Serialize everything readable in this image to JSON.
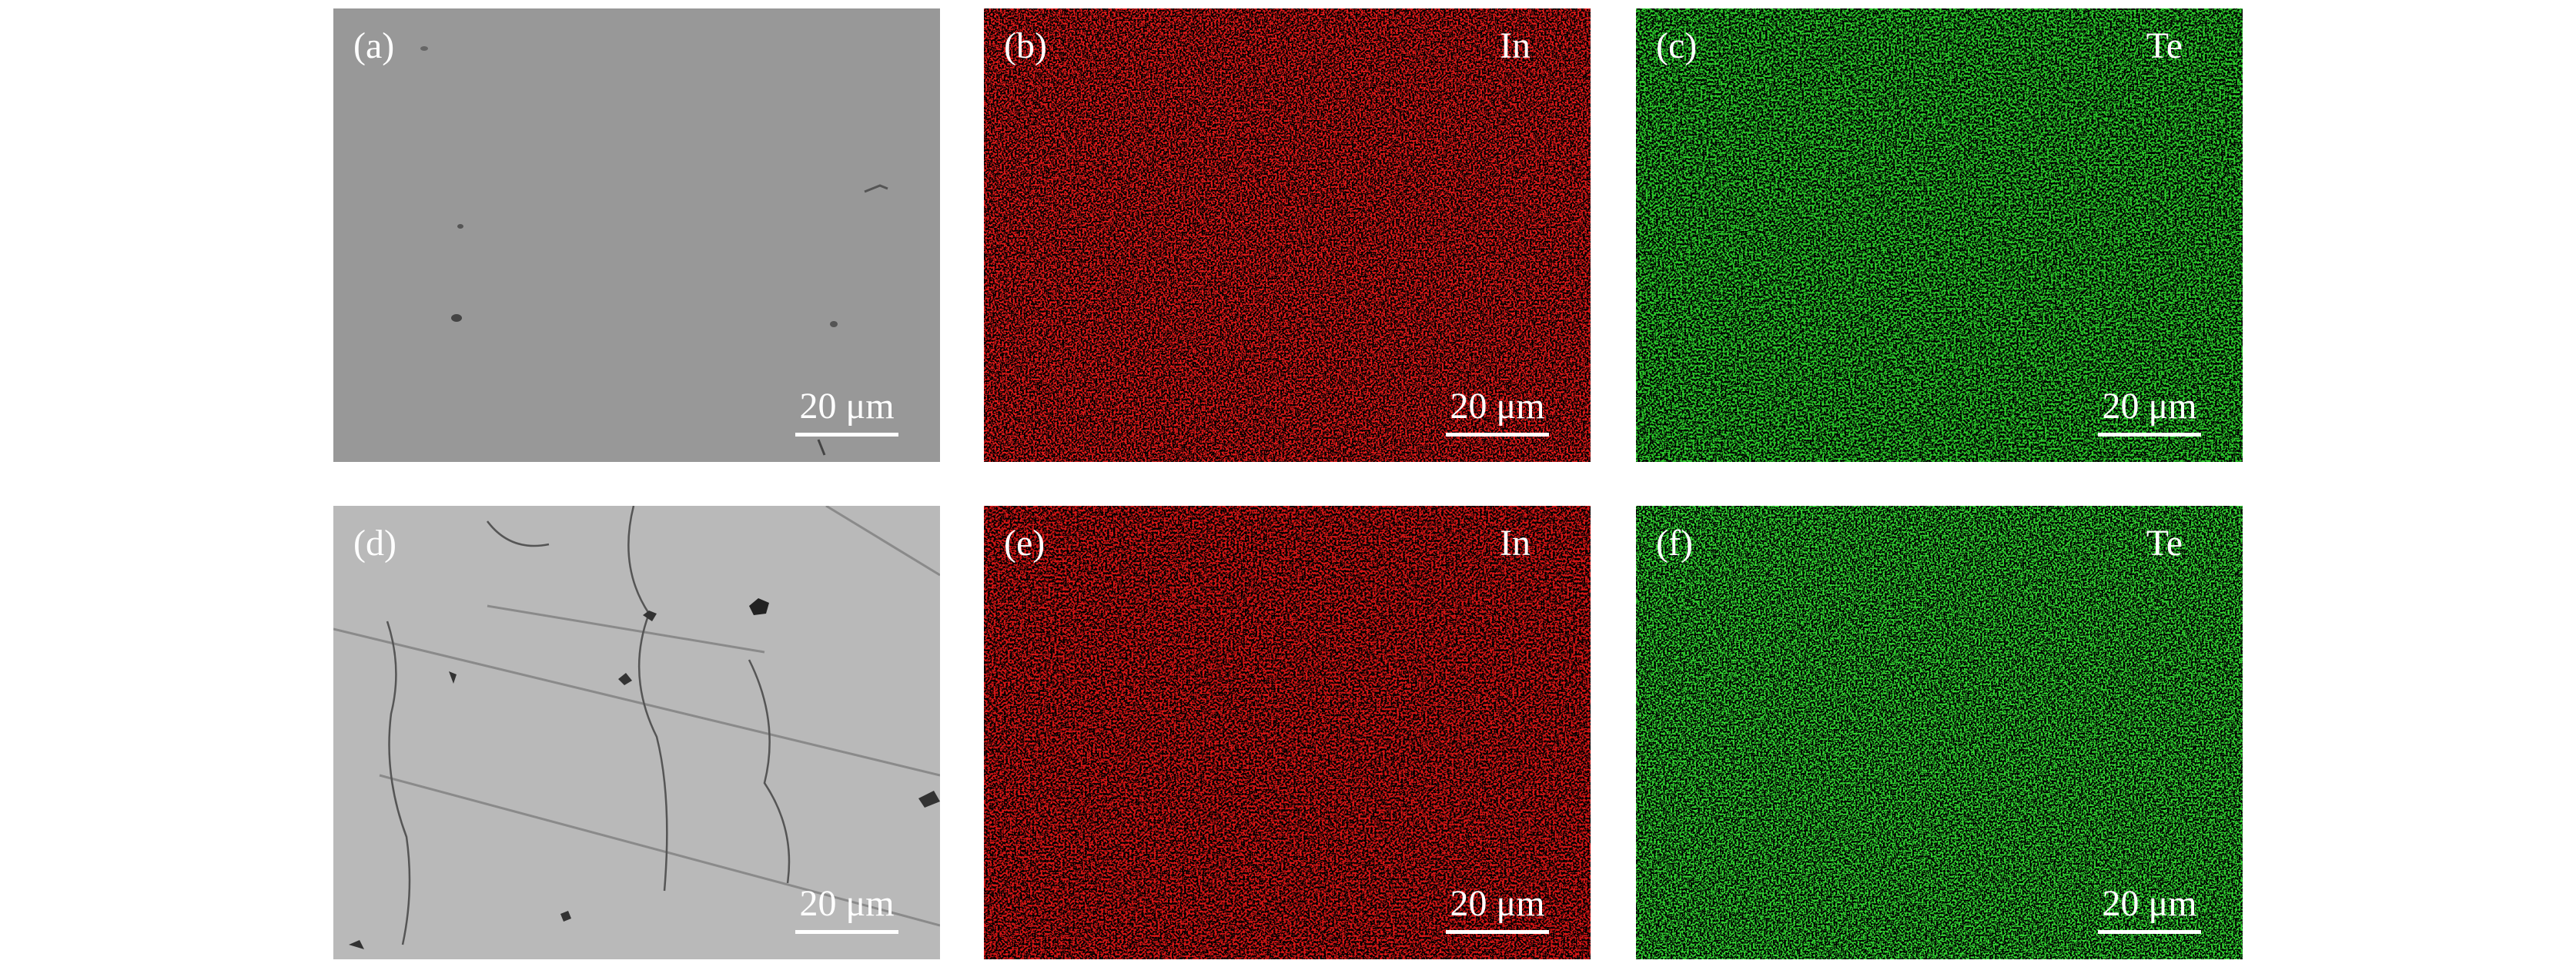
{
  "panels": [
    {
      "label": "(a)",
      "scale": "20 μm"
    },
    {
      "label": "(b)",
      "element": "In",
      "scale": "20 μm"
    },
    {
      "label": "(c)",
      "element": "Te",
      "scale": "20 μm"
    },
    {
      "label": "(d)",
      "scale": "20 μm"
    },
    {
      "label": "(e)",
      "element": "In",
      "scale": "20 μm"
    },
    {
      "label": "(f)",
      "element": "Te",
      "scale": "20 μm"
    }
  ]
}
